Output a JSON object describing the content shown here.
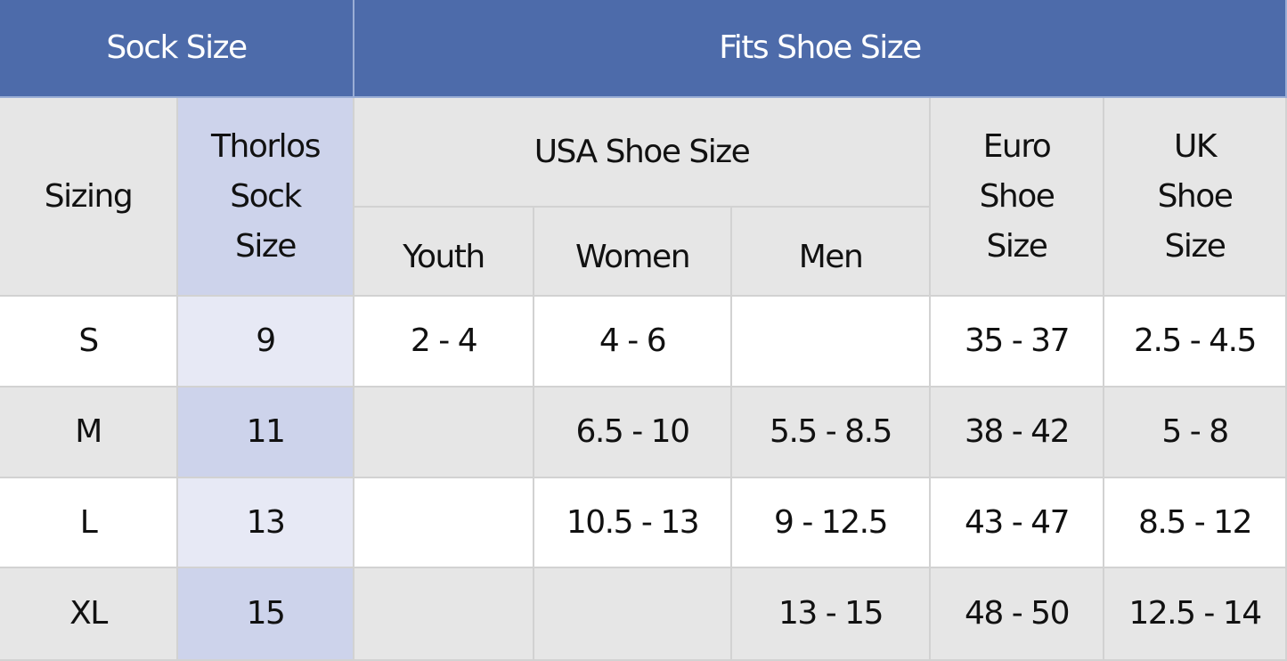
{
  "header": {
    "sock_size": "Sock Size",
    "fits_shoe_size": "Fits Shoe Size"
  },
  "subheader": {
    "sizing": "Sizing",
    "thorlos": "Thorlos\nSock\nSize",
    "usa": "USA Shoe Size",
    "youth": "Youth",
    "women": "Women",
    "men": "Men",
    "euro": "Euro\nShoe\nSize",
    "uk": "UK\nShoe\nSize"
  },
  "table": {
    "rows": [
      [
        "S",
        "9",
        "2 - 4",
        "4 - 6",
        null,
        "35 - 37",
        "2.5 - 4.5"
      ],
      [
        "M",
        "11",
        null,
        "6.5 - 10",
        "5.5 - 8.5",
        "38 - 42",
        "5 - 8"
      ],
      [
        "L",
        "13",
        null,
        "10.5 - 13",
        "9 - 12.5",
        "43 - 47",
        "8.5 - 12"
      ],
      [
        "XL",
        "15",
        null,
        null,
        "13 - 15",
        "48 - 50",
        "12.5 - 14"
      ]
    ]
  }
}
